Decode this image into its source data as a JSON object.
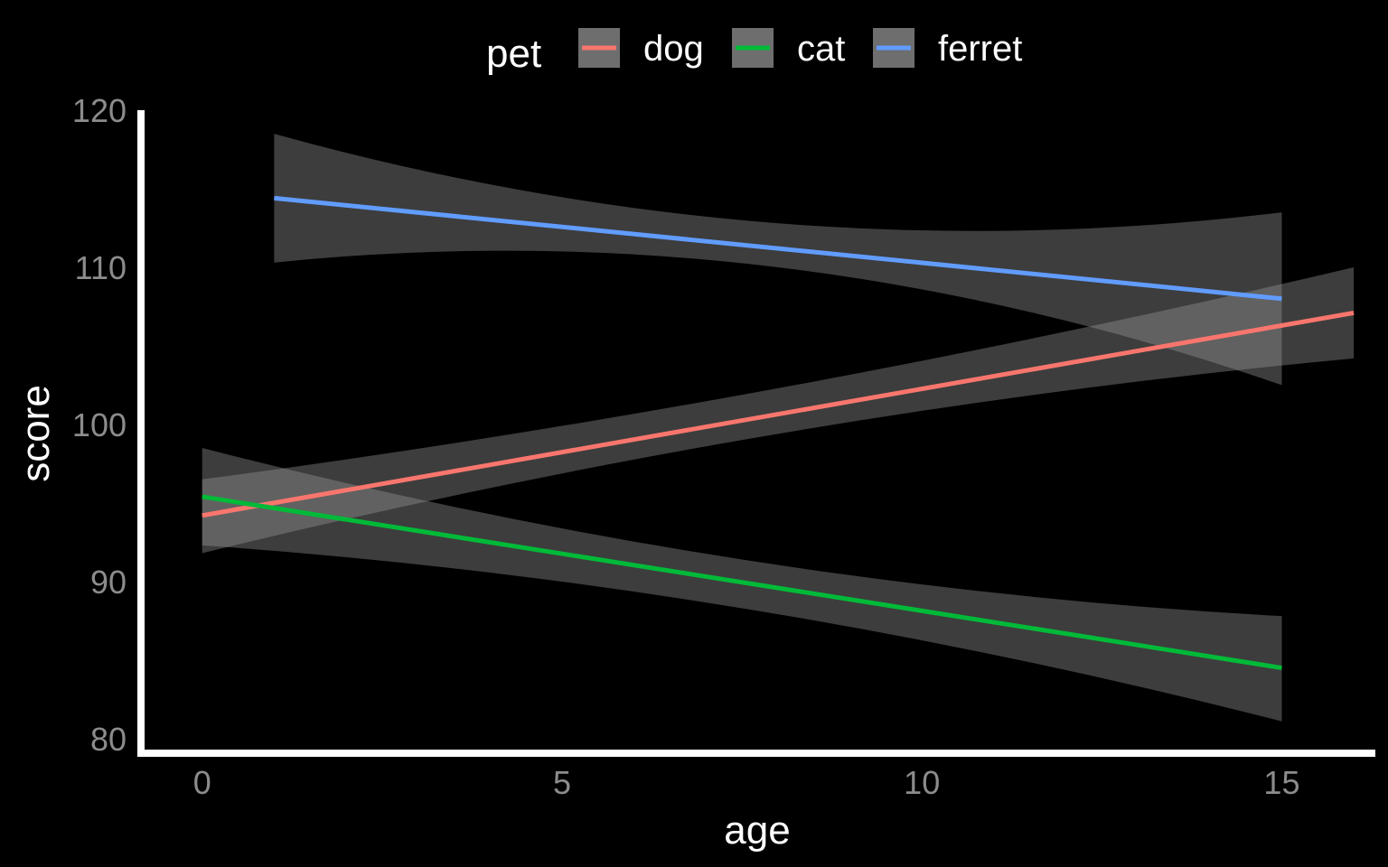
{
  "chart_data": {
    "type": "line",
    "title": "",
    "xlabel": "age",
    "ylabel": "score",
    "xlim": [
      -0.8,
      16.3
    ],
    "ylim": [
      79.3,
      120
    ],
    "xticks": [
      "0",
      "5",
      "10",
      "15"
    ],
    "yticks": [
      "80",
      "90",
      "100",
      "110",
      "120"
    ],
    "grid": false,
    "legend": {
      "title": "pet",
      "position": "top"
    },
    "series": [
      {
        "name": "dog",
        "color": "#f8766d",
        "x": [
          0,
          16
        ],
        "y": [
          94.2,
          107.1
        ],
        "ci_x": [
          0,
          8,
          16
        ],
        "ci_lower": [
          91.8,
          99.4,
          104.2
        ],
        "ci_upper": [
          96.5,
          102.3,
          110.0
        ]
      },
      {
        "name": "cat",
        "color": "#00ba38",
        "x": [
          0,
          15
        ],
        "y": [
          95.4,
          84.5
        ],
        "ci_x": [
          0,
          7.5,
          15
        ],
        "ci_lower": [
          92.3,
          88.3,
          81.1
        ],
        "ci_upper": [
          98.5,
          91.4,
          87.8
        ]
      },
      {
        "name": "ferret",
        "color": "#619cff",
        "x": [
          1,
          15
        ],
        "y": [
          114.4,
          108.0
        ],
        "ci_x": [
          1,
          8,
          15
        ],
        "ci_lower": [
          110.3,
          110.0,
          102.5
        ],
        "ci_upper": [
          118.5,
          112.8,
          113.5
        ]
      }
    ]
  }
}
